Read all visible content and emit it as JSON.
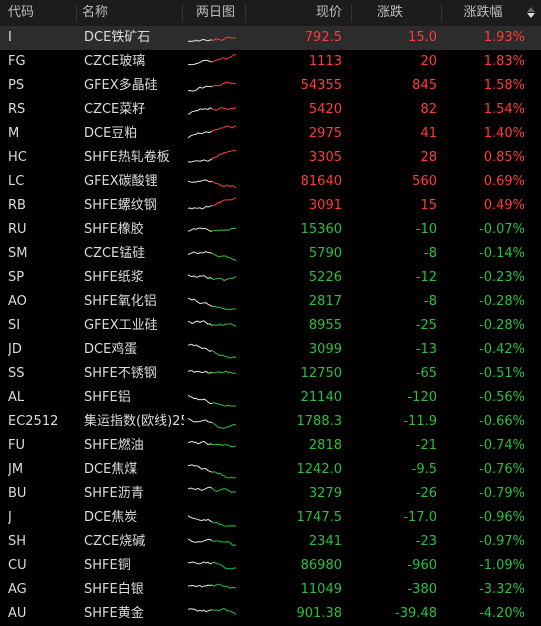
{
  "header": {
    "code": "代码",
    "name": "名称",
    "chart": "两日图",
    "price": "现价",
    "change": "涨跌",
    "pct": "涨跌幅"
  },
  "colors": {
    "up": "#ff3b3b",
    "down": "#28c13d",
    "neutral": "#dcdcdc",
    "bg": "#000000"
  },
  "rows": [
    {
      "code": "I",
      "name": "DCE铁矿石",
      "price": "792.5",
      "change": "15.0",
      "pct": "1.93%",
      "dir": "up",
      "trend": "up"
    },
    {
      "code": "FG",
      "name": "CZCE玻璃",
      "price": "1113",
      "change": "20",
      "pct": "1.83%",
      "dir": "up",
      "trend": "up"
    },
    {
      "code": "PS",
      "name": "GFEX多晶硅",
      "price": "54355",
      "change": "845",
      "pct": "1.58%",
      "dir": "up",
      "trend": "up"
    },
    {
      "code": "RS",
      "name": "CZCE菜籽",
      "price": "5420",
      "change": "82",
      "pct": "1.54%",
      "dir": "up",
      "trend": "up"
    },
    {
      "code": "M",
      "name": "DCE豆粕",
      "price": "2975",
      "change": "41",
      "pct": "1.40%",
      "dir": "up",
      "trend": "up"
    },
    {
      "code": "HC",
      "name": "SHFE热轧卷板",
      "price": "3305",
      "change": "28",
      "pct": "0.85%",
      "dir": "up",
      "trend": "up"
    },
    {
      "code": "LC",
      "name": "GFEX碳酸锂",
      "price": "81640",
      "change": "560",
      "pct": "0.69%",
      "dir": "up",
      "trend": "flat"
    },
    {
      "code": "RB",
      "name": "SHFE螺纹钢",
      "price": "3091",
      "change": "15",
      "pct": "0.49%",
      "dir": "up",
      "trend": "up"
    },
    {
      "code": "RU",
      "name": "SHFE橡胶",
      "price": "15360",
      "change": "-10",
      "pct": "-0.07%",
      "dir": "down",
      "trend": "flat"
    },
    {
      "code": "SM",
      "name": "CZCE锰硅",
      "price": "5790",
      "change": "-8",
      "pct": "-0.14%",
      "dir": "down",
      "trend": "flat"
    },
    {
      "code": "SP",
      "name": "SHFE纸浆",
      "price": "5226",
      "change": "-12",
      "pct": "-0.23%",
      "dir": "down",
      "trend": "down"
    },
    {
      "code": "AO",
      "name": "SHFE氧化铝",
      "price": "2817",
      "change": "-8",
      "pct": "-0.28%",
      "dir": "down",
      "trend": "down"
    },
    {
      "code": "SI",
      "name": "GFEX工业硅",
      "price": "8955",
      "change": "-25",
      "pct": "-0.28%",
      "dir": "down",
      "trend": "down"
    },
    {
      "code": "JD",
      "name": "DCE鸡蛋",
      "price": "3099",
      "change": "-13",
      "pct": "-0.42%",
      "dir": "down",
      "trend": "down"
    },
    {
      "code": "SS",
      "name": "SHFE不锈钢",
      "price": "12750",
      "change": "-65",
      "pct": "-0.51%",
      "dir": "down",
      "trend": "down"
    },
    {
      "code": "AL",
      "name": "SHFE铝",
      "price": "21140",
      "change": "-120",
      "pct": "-0.56%",
      "dir": "down",
      "trend": "down"
    },
    {
      "code": "EC2512",
      "name": "集运指数(欧线)25",
      "price": "1788.3",
      "change": "-11.9",
      "pct": "-0.66%",
      "dir": "down",
      "trend": "down"
    },
    {
      "code": "FU",
      "name": "SHFE燃油",
      "price": "2818",
      "change": "-21",
      "pct": "-0.74%",
      "dir": "down",
      "trend": "down"
    },
    {
      "code": "JM",
      "name": "DCE焦煤",
      "price": "1242.0",
      "change": "-9.5",
      "pct": "-0.76%",
      "dir": "down",
      "trend": "down"
    },
    {
      "code": "BU",
      "name": "SHFE沥青",
      "price": "3279",
      "change": "-26",
      "pct": "-0.79%",
      "dir": "down",
      "trend": "down"
    },
    {
      "code": "J",
      "name": "DCE焦炭",
      "price": "1747.5",
      "change": "-17.0",
      "pct": "-0.96%",
      "dir": "down",
      "trend": "down"
    },
    {
      "code": "SH",
      "name": "CZCE烧碱",
      "price": "2341",
      "change": "-23",
      "pct": "-0.97%",
      "dir": "down",
      "trend": "down"
    },
    {
      "code": "CU",
      "name": "SHFE铜",
      "price": "86980",
      "change": "-960",
      "pct": "-1.09%",
      "dir": "down",
      "trend": "down"
    },
    {
      "code": "AG",
      "name": "SHFE白银",
      "price": "11049",
      "change": "-380",
      "pct": "-3.32%",
      "dir": "down",
      "trend": "down"
    },
    {
      "code": "AU",
      "name": "SHFE黄金",
      "price": "901.38",
      "change": "-39.48",
      "pct": "-4.20%",
      "dir": "down",
      "trend": "down"
    }
  ]
}
